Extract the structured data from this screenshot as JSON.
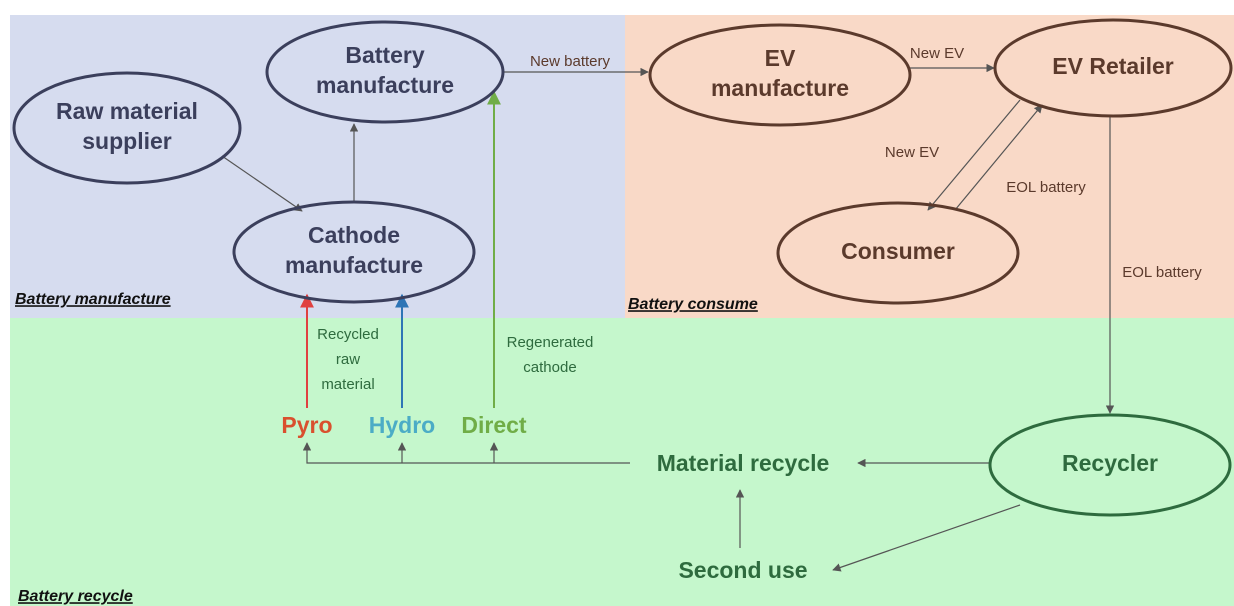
{
  "regions": [
    {
      "label": "Battery manufacture"
    },
    {
      "label": "Battery consume"
    },
    {
      "label": "Battery recycle"
    }
  ],
  "nodes": [
    {
      "lines": [
        "Raw material",
        "supplier"
      ]
    },
    {
      "lines": [
        "Battery",
        "manufacture"
      ]
    },
    {
      "lines": [
        "Cathode",
        "manufacture"
      ]
    },
    {
      "lines": [
        "EV",
        "manufacture"
      ]
    },
    {
      "lines": [
        "EV Retailer"
      ]
    },
    {
      "lines": [
        "Consumer"
      ]
    },
    {
      "lines": [
        "Recycler"
      ]
    },
    {
      "lines": [
        "Pyro"
      ]
    },
    {
      "lines": [
        "Hydro"
      ]
    },
    {
      "lines": [
        "Direct"
      ]
    },
    {
      "lines": [
        "Material recycle"
      ]
    },
    {
      "lines": [
        "Second use"
      ]
    }
  ],
  "edge_labels": [
    {
      "lines": [
        "New battery"
      ]
    },
    {
      "lines": [
        "New EV"
      ]
    },
    {
      "lines": [
        "New EV"
      ]
    },
    {
      "lines": [
        "EOL battery"
      ]
    },
    {
      "lines": [
        "EOL battery"
      ]
    },
    {
      "lines": [
        "Recycled",
        "raw",
        "material"
      ]
    },
    {
      "lines": [
        "Regenerated",
        "cathode"
      ]
    }
  ]
}
